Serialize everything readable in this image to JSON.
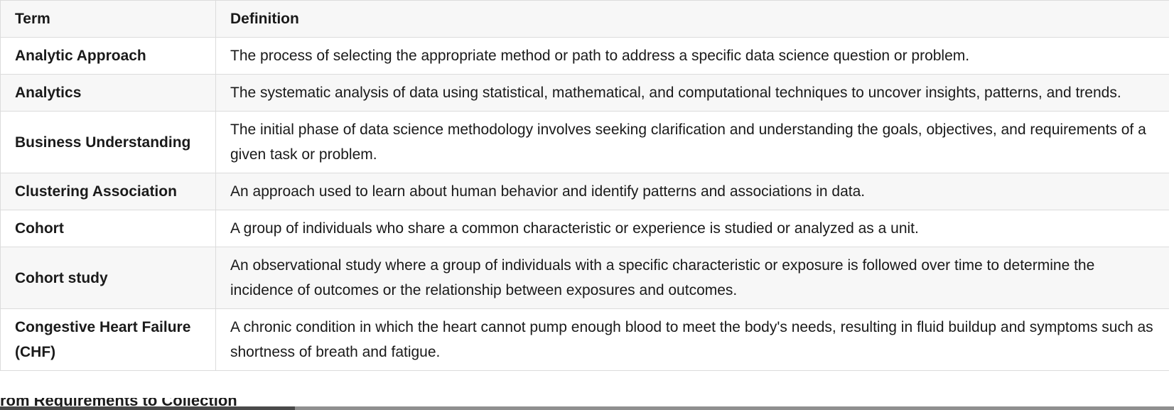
{
  "table": {
    "headers": {
      "term": "Term",
      "definition": "Definition"
    },
    "rows": [
      {
        "term": "Analytic Approach",
        "definition": "The process of selecting the appropriate method or path to address a specific data science question or problem."
      },
      {
        "term": "Analytics",
        "definition": "The systematic analysis of data using statistical, mathematical, and computational techniques to uncover insights, patterns, and trends."
      },
      {
        "term": "Business Understanding",
        "definition": "The initial phase of data science methodology involves seeking clarification and understanding the goals, objectives, and requirements of a given task or problem."
      },
      {
        "term": "Clustering Association",
        "definition": "An approach used to learn about human behavior and identify patterns and associations in data."
      },
      {
        "term": "Cohort",
        "definition": "A group of individuals who share a common characteristic or experience is studied or analyzed as a unit."
      },
      {
        "term": "Cohort study",
        "definition": "An observational study where a group of individuals with a specific characteristic or exposure is followed over time to determine the incidence of outcomes or the relationship between exposures and outcomes."
      },
      {
        "term": "Congestive Heart Failure (CHF)",
        "definition": "A chronic condition in which the heart cannot pump enough blood to meet the body's needs, resulting in fluid buildup and symptoms such as shortness of breath and fatigue."
      }
    ]
  },
  "next_heading": "rom Requirements to Collection"
}
